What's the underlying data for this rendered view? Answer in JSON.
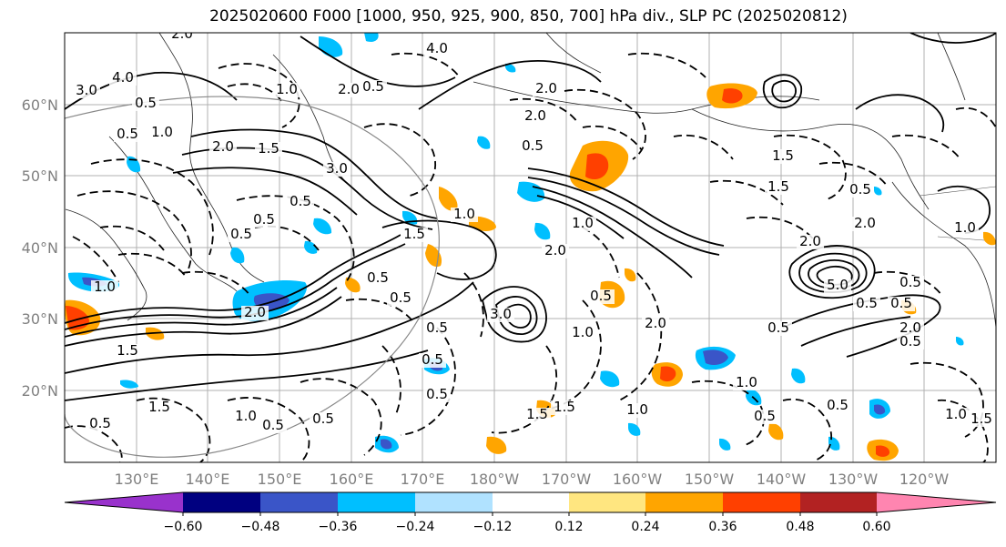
{
  "title": "2025020600 F000 [1000, 950, 925, 900, 850, 700] hPa div., SLP PC (2025020812)",
  "map": {
    "lon_labels": [
      "130°E",
      "140°E",
      "150°E",
      "160°E",
      "170°E",
      "180°W",
      "170°W",
      "160°W",
      "150°W",
      "140°W",
      "130°W",
      "120°W"
    ],
    "lat_labels": [
      "60°N",
      "50°N",
      "40°N",
      "30°N",
      "20°N"
    ],
    "grid": true,
    "projection": "plate-carree",
    "contour_labels": [
      "2.0",
      "4.0",
      "3.0",
      "4.0",
      "0.5",
      "1.0",
      "2.0",
      "0.5",
      "1.0",
      "2.0",
      "0.5",
      "1.5",
      "2.0",
      "3.0",
      "0.5",
      "0.5",
      "0.5",
      "1.0",
      "2.0",
      "1.5",
      "2.0",
      "0.5",
      "0.5",
      "0.5",
      "5.0",
      "0.5",
      "1.0",
      "1.0",
      "2.0",
      "0.5",
      "1.5",
      "1.5",
      "0.5",
      "0.5",
      "0.5",
      "1.0",
      "0.5",
      "0.5",
      "3.0",
      "2.0",
      "2.0",
      "1.5",
      "0.5",
      "1.5",
      "0.5",
      "0.5",
      "0.5",
      "1.0",
      "1.0",
      "1.5",
      "1.5",
      "0.5",
      "0.5",
      "1.0",
      "1.5",
      "1.0",
      "2.0",
      "2.0",
      "0.5",
      "0.5",
      "1.0"
    ]
  },
  "colorbar": {
    "ticks": [
      "−0.60",
      "−0.48",
      "−0.36",
      "−0.24",
      "−0.12",
      "0.12",
      "0.24",
      "0.36",
      "0.48",
      "0.60"
    ],
    "colors": [
      "#9932cc",
      "#000080",
      "#3a55c8",
      "#00bfff",
      "#b0e2ff",
      "#ffffff",
      "#ffe680",
      "#ffa500",
      "#ff4000",
      "#b22222",
      "#ff85b0"
    ]
  }
}
